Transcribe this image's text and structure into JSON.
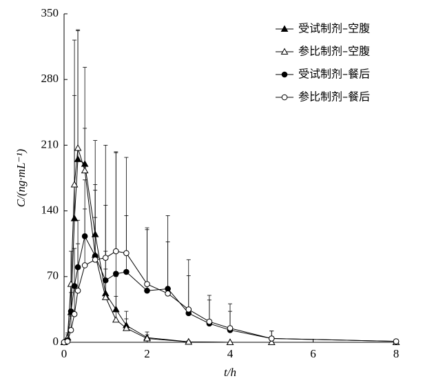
{
  "chart_data": {
    "type": "line",
    "x_label": "t/h",
    "y_label": "C/(ng·mL⁻¹)",
    "xlim": [
      0,
      8
    ],
    "xticks": [
      0,
      2,
      4,
      6,
      8
    ],
    "ylim": [
      0,
      350
    ],
    "yticks": [
      0,
      70,
      140,
      210,
      280,
      350
    ],
    "legend": "top-right",
    "series": [
      {
        "name": "受试制剂–空腹",
        "color": "#000000",
        "marker": "triangle",
        "filled": true,
        "x": [
          0,
          0.083,
          0.167,
          0.25,
          0.333,
          0.5,
          0.75,
          1,
          1.25,
          1.5,
          2,
          3,
          4,
          5,
          8
        ],
        "values": [
          0,
          5,
          32,
          132,
          195,
          190,
          115,
          52,
          35,
          18,
          5,
          0.5,
          0,
          0,
          0
        ],
        "errors": [
          0,
          3,
          30,
          190,
          138,
          38,
          100,
          45,
          35,
          15,
          6,
          1,
          0,
          0,
          0
        ]
      },
      {
        "name": "参比制剂–空腹",
        "color": "#000000",
        "marker": "triangle",
        "filled": false,
        "x": [
          0,
          0.083,
          0.167,
          0.25,
          0.333,
          0.5,
          0.75,
          1,
          1.25,
          1.5,
          2,
          3,
          4,
          5,
          8
        ],
        "values": [
          0,
          5,
          62,
          168,
          207,
          183,
          93,
          48,
          24,
          15,
          4,
          0.5,
          0,
          0,
          0
        ],
        "errors": [
          0,
          5,
          35,
          95,
          125,
          110,
          40,
          30,
          25,
          10,
          4,
          1,
          0,
          0,
          0
        ]
      },
      {
        "name": "受试制剂–餐后",
        "color": "#000000",
        "marker": "circle",
        "filled": true,
        "x": [
          0,
          0.083,
          0.167,
          0.25,
          0.333,
          0.5,
          0.75,
          1,
          1.25,
          1.5,
          2,
          2.5,
          3,
          3.5,
          4,
          5,
          8
        ],
        "values": [
          0,
          2,
          33,
          60,
          80,
          113,
          92,
          66,
          73,
          75,
          55,
          57,
          31,
          20,
          13,
          4,
          1
        ],
        "errors": [
          0,
          2,
          20,
          40,
          50,
          60,
          70,
          80,
          130,
          60,
          65,
          78,
          40,
          25,
          20,
          8,
          2
        ]
      },
      {
        "name": "参比制剂–餐后",
        "color": "#000000",
        "marker": "circle",
        "filled": false,
        "x": [
          0,
          0.083,
          0.167,
          0.25,
          0.333,
          0.5,
          0.75,
          1,
          1.25,
          1.5,
          2,
          2.5,
          3,
          3.5,
          4,
          5,
          8
        ],
        "values": [
          0,
          1,
          13,
          30,
          55,
          82,
          88,
          90,
          97,
          95,
          62,
          52,
          35,
          22,
          15,
          4,
          1
        ],
        "errors": [
          0,
          2,
          15,
          30,
          50,
          60,
          80,
          120,
          105,
          102,
          60,
          55,
          53,
          28,
          26,
          8,
          1
        ]
      }
    ]
  }
}
